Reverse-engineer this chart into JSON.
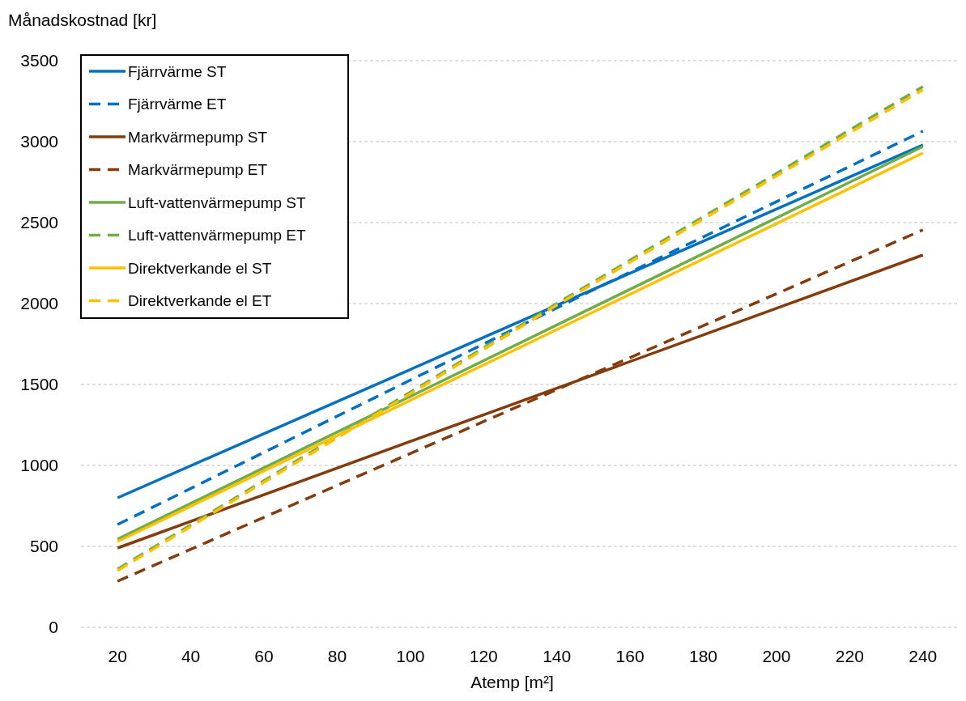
{
  "chart_data": {
    "type": "line",
    "ylabel": "Månadskostnad [kr]",
    "xlabel": "Atemp [m²]",
    "xlim": [
      10,
      250
    ],
    "xticks": [
      20,
      40,
      60,
      80,
      100,
      120,
      140,
      160,
      180,
      200,
      220,
      240
    ],
    "ylim": [
      0,
      3500
    ],
    "yticks": [
      0,
      500,
      1000,
      1500,
      2000,
      2500,
      3000,
      3500
    ],
    "grid": "y",
    "legend": "top left",
    "series": [
      {
        "name": "Fjärrvärme ST",
        "color": "#0070c0",
        "line_style": "solid",
        "x": [
          20,
          240
        ],
        "values": [
          800,
          2980
        ]
      },
      {
        "name": "Fjärrvärme ET",
        "color": "#0070c0",
        "line_style": "dashed",
        "x": [
          20,
          150,
          240
        ],
        "values": [
          635,
          2085,
          3065
        ]
      },
      {
        "name": "Markvärmepump ST",
        "color": "#843c0c",
        "line_style": "solid",
        "x": [
          20,
          240
        ],
        "values": [
          490,
          2300
        ]
      },
      {
        "name": "Markvärmepump ET",
        "color": "#843c0c",
        "line_style": "dashed",
        "x": [
          20,
          240
        ],
        "values": [
          285,
          2455
        ]
      },
      {
        "name": "Luft-vattenvärmepump ST",
        "color": "#70ad47",
        "line_style": "solid",
        "x": [
          20,
          240
        ],
        "values": [
          545,
          2970
        ]
      },
      {
        "name": "Luft-vattenvärmepump ET",
        "color": "#70ad47",
        "line_style": "dashed",
        "x": [
          20,
          140,
          240
        ],
        "values": [
          360,
          2000,
          3340
        ]
      },
      {
        "name": "Direktverkande el ST",
        "color": "#ffc000",
        "line_style": "solid",
        "x": [
          20,
          240
        ],
        "values": [
          530,
          2930
        ]
      },
      {
        "name": "Direktverkande el ET",
        "color": "#ffc000",
        "line_style": "dashed",
        "x": [
          20,
          140,
          240
        ],
        "values": [
          350,
          1990,
          3320
        ]
      }
    ]
  }
}
